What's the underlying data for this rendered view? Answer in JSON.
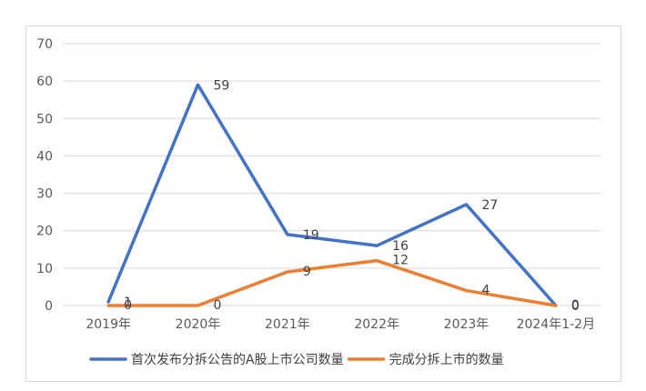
{
  "chart_data": {
    "type": "line",
    "categories": [
      "2019年",
      "2020年",
      "2021年",
      "2022年",
      "2023年",
      "2024年1-2月"
    ],
    "series": [
      {
        "name": "首次发布分拆公告的A股上市公司数量",
        "values": [
          1,
          59,
          19,
          16,
          27,
          0
        ],
        "color": "#4472C4"
      },
      {
        "name": "完成分拆上市的数量",
        "values": [
          0,
          0,
          9,
          12,
          4,
          0
        ],
        "color": "#ED7D31"
      }
    ],
    "ylim": [
      0,
      70
    ],
    "yticks": [
      0,
      10,
      20,
      30,
      40,
      50,
      60,
      70
    ],
    "grid": true,
    "legend": "bottom",
    "title": "",
    "xlabel": "",
    "ylabel": ""
  }
}
